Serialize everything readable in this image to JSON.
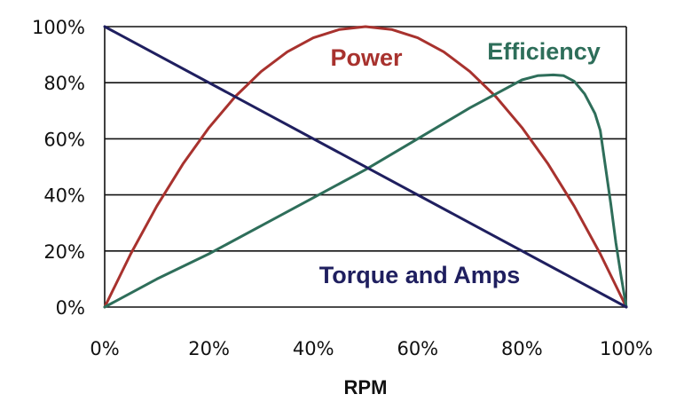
{
  "chart_data": {
    "type": "line",
    "title": "",
    "xlabel": "RPM",
    "ylabel": "",
    "xlim": [
      0,
      100
    ],
    "ylim": [
      0,
      100
    ],
    "x_ticks": [
      "0%",
      "20%",
      "40%",
      "60%",
      "80%",
      "100%"
    ],
    "y_ticks": [
      "0%",
      "20%",
      "40%",
      "60%",
      "80%",
      "100%"
    ],
    "grid": "horizontal",
    "legend": "inline labels",
    "series": [
      {
        "name": "Power",
        "color": "#a8322e",
        "x": [
          0,
          5,
          10,
          15,
          20,
          25,
          30,
          35,
          40,
          45,
          50,
          55,
          60,
          65,
          70,
          75,
          80,
          85,
          90,
          95,
          100
        ],
        "y": [
          0,
          19,
          36,
          51,
          64,
          75,
          84,
          91,
          96,
          99,
          100,
          99,
          96,
          91,
          84,
          75,
          64,
          51,
          36,
          19,
          0
        ]
      },
      {
        "name": "Efficiency",
        "color": "#2e6e5a",
        "x": [
          0,
          10,
          20,
          30,
          40,
          50,
          60,
          70,
          75,
          80,
          83,
          86,
          88,
          90,
          92,
          94,
          95,
          96,
          97,
          98,
          99,
          100
        ],
        "y": [
          0,
          10,
          19,
          29,
          39,
          49,
          60,
          71,
          76,
          81,
          82.5,
          82.8,
          82.5,
          80.5,
          76,
          69,
          63,
          50,
          37,
          23,
          11,
          0
        ]
      },
      {
        "name": "Torque and Amps",
        "color": "#1f1f5f",
        "x": [
          0,
          100
        ],
        "y": [
          100,
          0
        ]
      }
    ]
  }
}
